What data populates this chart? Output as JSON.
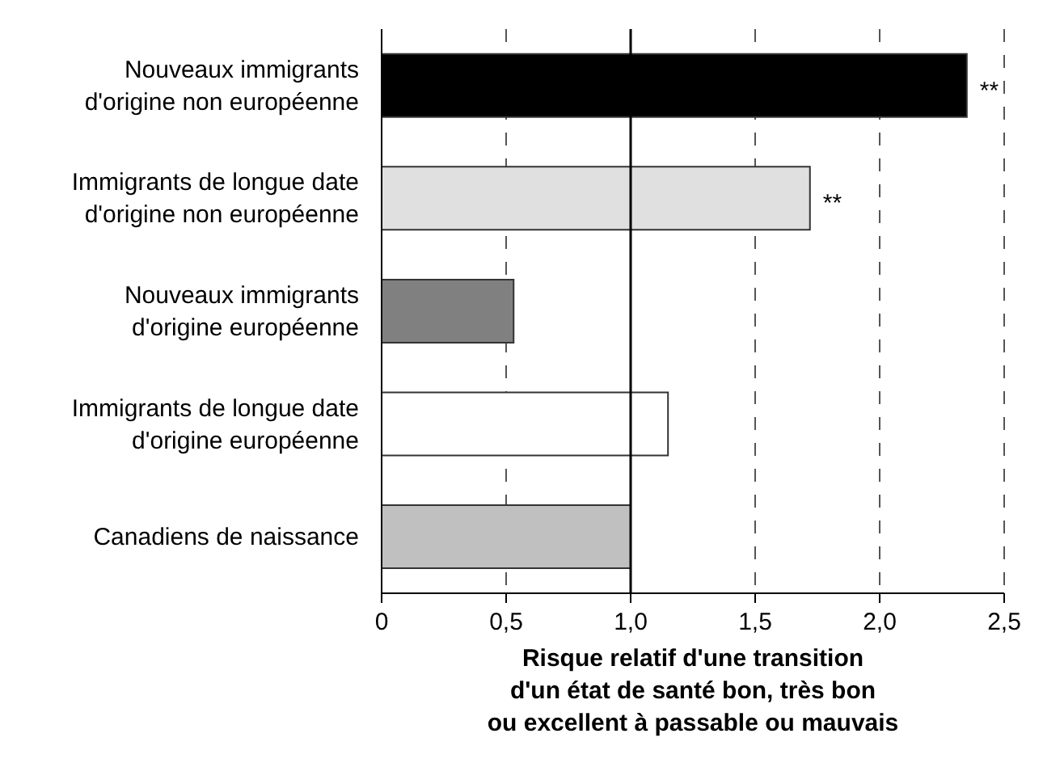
{
  "chart_data": {
    "type": "bar",
    "orientation": "horizontal",
    "categories": [
      "Nouveaux immigrants d'origine non européenne",
      "Immigrants de longue date d'origine non européenne",
      "Nouveaux immigrants d'origine européenne",
      "Immigrants de longue date d'origine européenne",
      "Canadiens de naissance"
    ],
    "values": [
      2.35,
      1.72,
      0.53,
      1.15,
      1.0
    ],
    "colors": [
      "#000000",
      "#e0e0e0",
      "#808080",
      "#ffffff",
      "#c0c0c0"
    ],
    "xlabel": "Risque relatif d'une transition d'un état de santé bon, très bon ou excellent à passable ou mauvais",
    "xlim": [
      0,
      2.5
    ],
    "xticks": [
      {
        "value": 0,
        "label": "0"
      },
      {
        "value": 0.5,
        "label": "0,5"
      },
      {
        "value": 1,
        "label": "1,0"
      },
      {
        "value": 1.5,
        "label": "1,5"
      },
      {
        "value": 2,
        "label": "2,0"
      },
      {
        "value": 2.5,
        "label": "2,5"
      }
    ],
    "grid": "x",
    "ref_lines": [
      {
        "axis": "x",
        "value": 1,
        "color": "#000000",
        "line_style": "solid"
      }
    ],
    "annotations": [
      {
        "text": "**",
        "x": 2.35,
        "y": "Nouveaux immigrants d'origine non européenne"
      },
      {
        "text": "**",
        "x": 1.72,
        "y": "Immigrants de longue date d'origine non européenne"
      }
    ]
  }
}
